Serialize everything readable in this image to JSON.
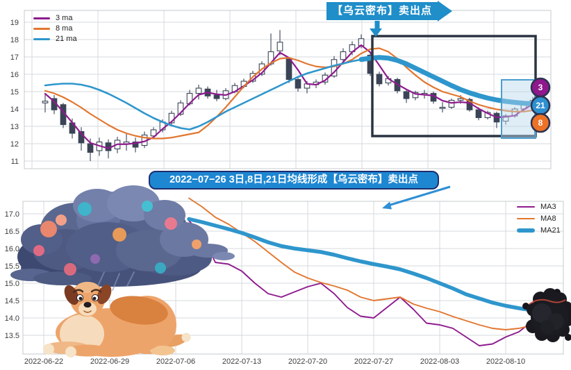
{
  "annotations": {
    "banner_text": "【乌云密布】卖出点",
    "banner_color": "#1f8ec9",
    "callout_text": "2022−07−26 3日,8日,21日均线形成【乌云密布】卖出点",
    "callout_fill": "#1e87d2",
    "callout_border": "#1d2e6e",
    "arrow_color": "#2f8fd4"
  },
  "chart_data": [
    {
      "type": "candlestick",
      "description": "daily candles with 3/8/21 moving averages, dark cloud cover sell signal",
      "ylim": [
        10.8,
        19.4
      ],
      "yticks": [
        "19",
        "18",
        "17",
        "16",
        "15",
        "14",
        "13",
        "12",
        "11"
      ],
      "grid": true,
      "legend_position": "upper-left",
      "legend": [
        {
          "label": "3 ma",
          "color": "#8e1b8e"
        },
        {
          "label": "8 ma",
          "color": "#e2762f"
        },
        {
          "label": "21 ma",
          "color": "#2e96cc"
        }
      ],
      "candle_color": "#3a4456",
      "candles": [
        [
          14.35,
          14.9,
          13.8,
          14.45
        ],
        [
          14.6,
          14.8,
          13.7,
          13.95
        ],
        [
          14.25,
          14.35,
          12.9,
          13.1
        ],
        [
          13.2,
          13.45,
          12.3,
          12.6
        ],
        [
          12.7,
          12.95,
          11.6,
          12.05
        ],
        [
          12.0,
          12.3,
          11.0,
          11.5
        ],
        [
          11.6,
          12.35,
          11.3,
          12.1
        ],
        [
          12.05,
          12.25,
          11.15,
          11.6
        ],
        [
          11.7,
          12.4,
          11.45,
          12.2
        ],
        [
          12.0,
          12.6,
          11.6,
          12.1
        ],
        [
          12.1,
          12.35,
          11.5,
          11.8
        ],
        [
          11.9,
          12.7,
          11.75,
          12.5
        ],
        [
          12.45,
          12.95,
          12.3,
          12.8
        ],
        [
          12.8,
          13.4,
          12.65,
          13.25
        ],
        [
          13.2,
          13.9,
          13.1,
          13.75
        ],
        [
          13.7,
          14.5,
          13.6,
          14.35
        ],
        [
          14.3,
          15.1,
          14.2,
          14.9
        ],
        [
          14.9,
          15.4,
          14.55,
          15.2
        ],
        [
          15.15,
          15.3,
          14.6,
          14.75
        ],
        [
          14.8,
          15.1,
          14.45,
          14.6
        ],
        [
          14.6,
          15.2,
          14.5,
          15.05
        ],
        [
          15.0,
          15.5,
          14.9,
          15.35
        ],
        [
          15.3,
          15.75,
          15.2,
          15.6
        ],
        [
          15.6,
          16.2,
          15.5,
          16.05
        ],
        [
          16.0,
          16.75,
          15.9,
          16.6
        ],
        [
          16.6,
          18.35,
          16.5,
          17.3
        ],
        [
          17.35,
          18.55,
          17.1,
          17.85
        ],
        [
          16.9,
          17.0,
          15.5,
          15.7
        ],
        [
          15.7,
          15.9,
          15.0,
          15.2
        ],
        [
          15.2,
          15.6,
          14.9,
          15.45
        ],
        [
          15.4,
          15.7,
          15.2,
          15.55
        ],
        [
          15.55,
          16.1,
          15.4,
          15.95
        ],
        [
          15.9,
          17.05,
          15.8,
          16.85
        ],
        [
          16.85,
          17.5,
          16.7,
          17.3
        ],
        [
          17.3,
          17.9,
          17.1,
          17.7
        ],
        [
          17.65,
          18.3,
          17.5,
          18.05
        ],
        [
          17.1,
          17.3,
          15.9,
          16.05
        ],
        [
          16.0,
          16.15,
          15.3,
          15.45
        ],
        [
          15.5,
          15.9,
          15.35,
          15.75
        ],
        [
          15.7,
          15.8,
          14.9,
          15.05
        ],
        [
          15.0,
          15.15,
          14.35,
          14.6
        ],
        [
          14.65,
          15.05,
          14.5,
          14.95
        ],
        [
          14.85,
          15.1,
          14.6,
          14.9
        ],
        [
          14.9,
          15.0,
          14.3,
          14.45
        ],
        [
          14.05,
          14.4,
          13.8,
          14.1
        ],
        [
          14.1,
          14.6,
          14.0,
          14.5
        ],
        [
          14.5,
          14.8,
          14.3,
          14.6
        ],
        [
          14.55,
          14.65,
          13.85,
          13.95
        ],
        [
          13.95,
          14.1,
          13.35,
          13.5
        ],
        [
          13.5,
          13.9,
          13.4,
          13.8
        ],
        [
          13.75,
          13.85,
          12.9,
          13.25
        ],
        [
          13.3,
          13.7,
          13.1,
          13.6
        ],
        [
          13.6,
          14.1,
          13.5,
          14.0
        ],
        [
          14.0,
          14.45,
          13.9,
          14.3
        ],
        [
          14.25,
          14.7,
          14.1,
          14.5
        ]
      ],
      "series": {
        "ma3": [
          14.88,
          14.43,
          13.83,
          13.22,
          12.58,
          12.05,
          11.88,
          11.73,
          11.97,
          11.97,
          12.03,
          12.13,
          12.37,
          12.85,
          13.27,
          13.78,
          14.33,
          14.82,
          14.95,
          14.85,
          14.8,
          15.0,
          15.33,
          15.67,
          16.08,
          16.65,
          17.25,
          16.95,
          16.25,
          15.45,
          15.4,
          15.65,
          16.12,
          16.7,
          17.28,
          17.68,
          17.27,
          16.52,
          15.75,
          15.42,
          15.13,
          14.87,
          14.82,
          14.77,
          14.48,
          14.35,
          14.4,
          14.35,
          14.02,
          13.75,
          13.52,
          13.55,
          13.62,
          13.97,
          14.27
        ],
        "ma8": [
          15.05,
          14.9,
          14.68,
          14.4,
          14.08,
          13.72,
          13.4,
          13.08,
          12.8,
          12.6,
          12.45,
          12.35,
          12.3,
          12.3,
          12.35,
          12.45,
          12.55,
          12.65,
          13.05,
          13.55,
          14.1,
          14.7,
          15.3,
          15.85,
          16.3,
          16.65,
          16.9,
          16.95,
          16.8,
          16.6,
          16.45,
          16.4,
          16.45,
          16.6,
          16.85,
          17.2,
          17.45,
          17.5,
          17.3,
          16.9,
          16.4,
          15.95,
          15.55,
          15.25,
          15.0,
          14.85,
          14.7,
          14.45,
          14.25,
          14.1,
          13.98,
          13.9,
          13.85,
          13.85,
          13.92
        ],
        "ma21": [
          15.36,
          15.42,
          15.46,
          15.46,
          15.4,
          15.28,
          15.1,
          14.88,
          14.62,
          14.35,
          14.05,
          13.75,
          13.48,
          13.25,
          13.05,
          12.9,
          12.82,
          13.0,
          13.25,
          13.55,
          13.85,
          14.1,
          14.35,
          14.6,
          14.85,
          15.1,
          15.35,
          15.6,
          15.85,
          16.05,
          16.2,
          16.35,
          16.5,
          16.62,
          16.75,
          16.85,
          16.93,
          16.97,
          16.93,
          16.8,
          16.6,
          16.35,
          16.1,
          15.85,
          15.6,
          15.35,
          15.12,
          14.93,
          14.77,
          14.63,
          14.52,
          14.44,
          14.38,
          14.33,
          14.3
        ]
      },
      "ma21_thick_from_index": 35,
      "pattern_box_color": "#2b3542",
      "highlight_fill": "#b9d7ec",
      "highlight_stroke": "#4a9dce",
      "badges": [
        {
          "label": "3",
          "color": "#8f188c"
        },
        {
          "label": "21",
          "color": "#2f90d0"
        },
        {
          "label": "8",
          "color": "#ed7226"
        }
      ]
    },
    {
      "type": "line",
      "description": "MA3 / MA8 / MA21 moving-average lines",
      "ylim": [
        13.1,
        17.35
      ],
      "yticks": [
        "17.0",
        "16.5",
        "16.0",
        "15.5",
        "15.0",
        "14.5",
        "14.0",
        "13.5"
      ],
      "xticks": [
        "2022-06-22",
        "2022-06-29",
        "2022-07-06",
        "2022-07-13",
        "2022-07-20",
        "2022-07-27",
        "2022-08-03",
        "2022-08-10"
      ],
      "grid": true,
      "legend_position": "upper-right",
      "legend": [
        {
          "label": "MA3",
          "color": "#8e1b8e",
          "thick": false
        },
        {
          "label": "MA8",
          "color": "#e2762f",
          "thick": false
        },
        {
          "label": "MA21",
          "color": "#2e96cc",
          "thick": true
        }
      ],
      "start_day": 11,
      "series": {
        "ma3": [
          16.8,
          16.4,
          15.6,
          15.55,
          15.35,
          15.0,
          14.7,
          14.6,
          14.75,
          14.9,
          15.0,
          14.7,
          14.3,
          14.05,
          14.0,
          14.3,
          14.6,
          14.25,
          13.85,
          13.8,
          13.7,
          13.45,
          13.2,
          13.25,
          13.45,
          13.6,
          13.9,
          14.15,
          14.3,
          14.35
        ],
        "ma8": [
          17.45,
          17.2,
          16.9,
          16.7,
          16.45,
          16.2,
          15.9,
          15.6,
          15.32,
          15.15,
          15.02,
          14.92,
          14.8,
          14.6,
          14.5,
          14.55,
          14.6,
          14.4,
          14.28,
          14.18,
          14.04,
          13.92,
          13.8,
          13.7,
          13.66,
          13.7,
          13.78,
          13.92,
          14.1,
          14.25
        ],
        "ma21": [
          16.85,
          16.76,
          16.66,
          16.56,
          16.45,
          16.32,
          16.18,
          16.07,
          16.0,
          15.95,
          15.9,
          15.82,
          15.72,
          15.63,
          15.55,
          15.48,
          15.4,
          15.28,
          15.15,
          15.0,
          14.85,
          14.68,
          14.56,
          14.44,
          14.35,
          14.28,
          14.22,
          14.2,
          14.18,
          14.17
        ]
      }
    }
  ]
}
